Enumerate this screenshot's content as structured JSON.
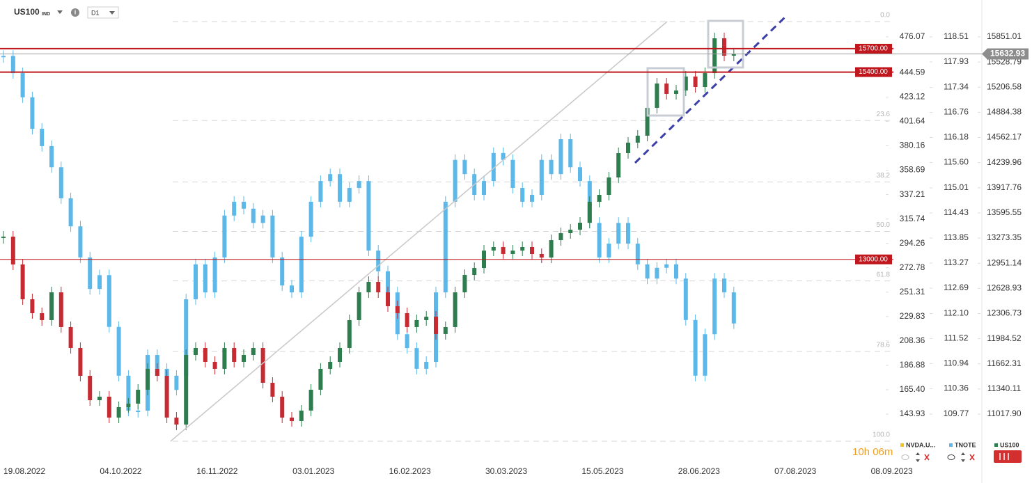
{
  "chart_data": {
    "type": "candlestick",
    "symbol": "US100",
    "symbol_type": "IND",
    "timeframe": "D1",
    "x_labels": [
      "19.08.2022",
      "04.10.2022",
      "16.11.2022",
      "03.01.2023",
      "16.02.2023",
      "30.03.2023",
      "15.05.2023",
      "28.06.2023",
      "07.08.2023",
      "08.09.2023"
    ],
    "series": [
      {
        "name": "US100",
        "color": "#2e7d4f",
        "down_color": "#c62a33",
        "axis": 2,
        "values": [
          13292,
          12935,
          12489,
          12311,
          12222,
          12578,
          12133,
          11865,
          11508,
          11196,
          11241,
          10973,
          11107,
          11152,
          11330,
          11598,
          11508,
          10973,
          10884,
          11776,
          11865,
          11687,
          11598,
          11865,
          11687,
          11776,
          11865,
          11419,
          11241,
          10973,
          10929,
          11063,
          11330,
          11598,
          11687,
          11865,
          12222,
          12578,
          12712,
          12578,
          12400,
          12311,
          12133,
          12222,
          12266,
          12044,
          12133,
          12578,
          12801,
          12890,
          13113,
          13158,
          13069,
          13113,
          13158,
          13069,
          13024,
          13247,
          13336,
          13381,
          13470,
          13738,
          13827,
          14050,
          14362,
          14496,
          14585,
          14942,
          15254,
          15120,
          15164,
          15343,
          15209,
          15387,
          15833,
          15610,
          15633
        ]
      },
      {
        "name": "TNOTE",
        "color": "#5bb8e8",
        "down_color": "#5bb8e8",
        "axis": 1,
        "values": [
          118.07,
          117.67,
          117.11,
          116.38,
          115.98,
          115.49,
          114.77,
          114.12,
          113.4,
          112.67,
          112.99,
          111.79,
          110.66,
          109.85,
          109.85,
          111.14,
          110.82,
          110.33,
          110.66,
          112.43,
          113.24,
          112.59,
          113.4,
          114.37,
          114.69,
          114.53,
          114.2,
          114.37,
          113.4,
          112.75,
          112.59,
          113.88,
          114.69,
          115.17,
          115.33,
          114.69,
          115.01,
          115.17,
          113.56,
          113.08,
          112.59,
          111.62,
          111.3,
          110.82,
          110.98,
          112.59,
          114.69,
          115.66,
          115.33,
          114.85,
          115.17,
          115.82,
          115.66,
          115.01,
          114.69,
          114.85,
          115.66,
          115.33,
          116.14,
          115.49,
          115.17,
          114.2,
          113.4,
          113.72,
          114.2,
          113.72,
          113.24,
          112.91,
          113.16,
          113.24,
          112.91,
          111.95,
          110.66,
          111.62,
          112.91,
          112.59,
          111.87
        ]
      }
    ],
    "legend": [
      {
        "name": "NVDA.U...",
        "color": "#f0c419"
      },
      {
        "name": "TNOTE",
        "color": "#5bb8e8"
      },
      {
        "name": "US100",
        "color": "#2e7d4f"
      }
    ],
    "axes": [
      {
        "ylim": [
          143.93,
          476.07
        ],
        "yticks": [
          476.07,
          444.59,
          423.12,
          401.64,
          380.16,
          358.69,
          337.21,
          315.74,
          294.26,
          272.78,
          251.31,
          229.83,
          208.36,
          186.88,
          {
            "value": 165.4,
            "label": "165.40"
          },
          143.93
        ]
      },
      {
        "ylim": [
          109.77,
          118.51
        ],
        "yticks": [
          118.51,
          117.93,
          117.34,
          116.76,
          116.18,
          {
            "value": 115.6,
            "label": "115.60"
          },
          115.01,
          114.43,
          113.85,
          113.27,
          112.69,
          {
            "value": 112.1,
            "label": "112.10"
          },
          111.52,
          110.94,
          110.36,
          109.77
        ]
      },
      {
        "ylim": [
          11017.9,
          15851.01
        ],
        "yticks": [
          15851.01,
          15528.79,
          15206.58,
          14884.38,
          14562.17,
          14239.96,
          13917.76,
          13595.55,
          13273.35,
          12951.14,
          12628.93,
          12306.73,
          11984.52,
          11662.31,
          11340.11,
          {
            "value": 11017.9,
            "label": "11017.90"
          }
        ]
      }
    ],
    "levels": [
      {
        "value": 15700,
        "label": "15700.00"
      },
      {
        "value": 15400,
        "label": "15400.00"
      },
      {
        "value": 13000,
        "label": "13000.00"
      }
    ],
    "last_price": 15632.93,
    "fib_levels": [
      {
        "value": 0,
        "label": "0.0"
      },
      {
        "value": 23.6,
        "label": "23.6"
      },
      {
        "value": 38.2,
        "label": "38.2"
      },
      {
        "value": 50,
        "label": "50.0"
      },
      {
        "value": 61.8,
        "label": "61.8"
      },
      {
        "value": 78.6,
        "label": "78.6"
      },
      {
        "value": 100,
        "label": "100.0"
      }
    ],
    "countdown": "10h 06m"
  }
}
